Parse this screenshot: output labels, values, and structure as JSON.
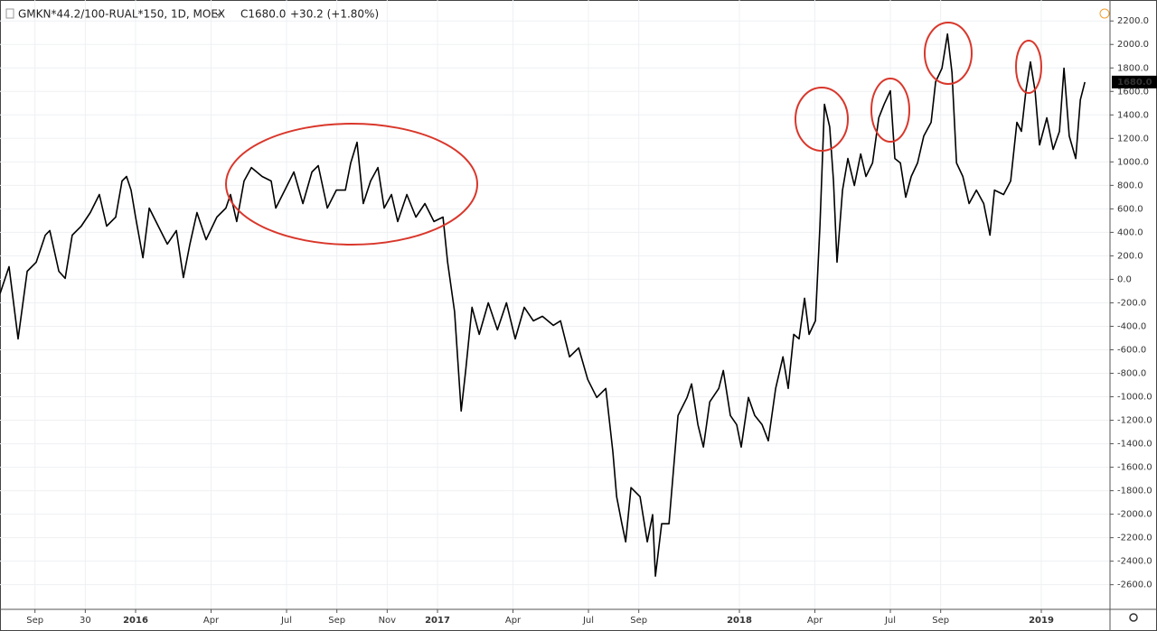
{
  "chart_data": {
    "type": "line",
    "title": "GMKN*44.2/100-RUAL*150, 1D, MOEX",
    "close_label": "C1680.0",
    "change_label": "+30.2 (+1.80%)",
    "last_price_label": "1680.0",
    "grid": true,
    "xlim": [
      -5.39,
      38.73
    ],
    "ylim": [
      -2810,
      2340
    ],
    "xticks": [
      {
        "value": -4,
        "label": "Sep"
      },
      {
        "value": -2,
        "label": "30"
      },
      {
        "value": 0,
        "label": "2016"
      },
      {
        "value": 3,
        "label": "Apr"
      },
      {
        "value": 6,
        "label": "Jul"
      },
      {
        "value": 8,
        "label": "Sep"
      },
      {
        "value": 10,
        "label": "Nov"
      },
      {
        "value": 12,
        "label": "2017"
      },
      {
        "value": 15,
        "label": "Apr"
      },
      {
        "value": 18,
        "label": "Jul"
      },
      {
        "value": 20,
        "label": "Sep"
      },
      {
        "value": 24,
        "label": "2018"
      },
      {
        "value": 27,
        "label": "Apr"
      },
      {
        "value": 30,
        "label": "Jul"
      },
      {
        "value": 32,
        "label": "Sep"
      },
      {
        "value": 36,
        "label": "2019"
      }
    ],
    "yticks": [
      {
        "value": 2200,
        "label": "2200.0"
      },
      {
        "value": 2000,
        "label": "2000.0"
      },
      {
        "value": 1800,
        "label": "1800.0"
      },
      {
        "value": 1600,
        "label": "1600.0"
      },
      {
        "value": 1400,
        "label": "1400.0"
      },
      {
        "value": 1200,
        "label": "1200.0"
      },
      {
        "value": 1000,
        "label": "1000.0"
      },
      {
        "value": 800,
        "label": "800.0"
      },
      {
        "value": 600,
        "label": "600.0"
      },
      {
        "value": 400,
        "label": "400.0"
      },
      {
        "value": 200,
        "label": "200.0"
      },
      {
        "value": 0,
        "label": "0.0"
      },
      {
        "value": -200,
        "label": "-200.0"
      },
      {
        "value": -400,
        "label": "-400.0"
      },
      {
        "value": -600,
        "label": "-600.0"
      },
      {
        "value": -800,
        "label": "-800.0"
      },
      {
        "value": -1000,
        "label": "-1000.0"
      },
      {
        "value": -1200,
        "label": "-1200.0"
      },
      {
        "value": -1400,
        "label": "-1400.0"
      },
      {
        "value": -1600,
        "label": "-1600.0"
      },
      {
        "value": -1800,
        "label": "-1800.0"
      },
      {
        "value": -2000,
        "label": "-2000.0"
      },
      {
        "value": -2200,
        "label": "-2200.0"
      },
      {
        "value": -2400,
        "label": "-2400.0"
      },
      {
        "value": -2600,
        "label": "-2600.0"
      }
    ],
    "x": [
      -5.39,
      -5.03,
      -4.67,
      -4.31,
      -3.95,
      -3.59,
      -3.41,
      -3.05,
      -2.8,
      -2.52,
      -2.16,
      -1.8,
      -1.44,
      -1.15,
      -0.79,
      -0.54,
      -0.36,
      -0.18,
      0,
      0.29,
      0.54,
      0.9,
      1.26,
      1.62,
      1.9,
      2.16,
      2.44,
      2.8,
      3.23,
      3.59,
      3.77,
      4.02,
      4.31,
      4.6,
      5.03,
      5.39,
      5.57,
      5.93,
      6.29,
      6.65,
      7.01,
      7.26,
      7.62,
      7.98,
      8.34,
      8.55,
      8.8,
      9.05,
      9.34,
      9.63,
      9.88,
      10.17,
      10.42,
      10.78,
      11.14,
      11.5,
      11.86,
      12.22,
      12.4,
      12.68,
      12.94,
      13.12,
      13.37,
      13.66,
      14.02,
      14.38,
      14.74,
      15.09,
      15.45,
      15.81,
      16.17,
      16.6,
      16.89,
      17.25,
      17.61,
      17.97,
      18.33,
      18.69,
      18.97,
      19.12,
      19.33,
      19.48,
      19.69,
      20.05,
      20.34,
      20.55,
      20.66,
      20.91,
      21.2,
      21.38,
      21.56,
      21.92,
      22.1,
      22.35,
      22.57,
      22.82,
      23.18,
      23.36,
      23.64,
      23.89,
      24.07,
      24.36,
      24.61,
      24.9,
      25.15,
      25.44,
      25.73,
      25.94,
      26.16,
      26.37,
      26.59,
      26.77,
      27.02,
      27.2,
      27.38,
      27.59,
      27.74,
      27.88,
      28.1,
      28.31,
      28.57,
      28.82,
      29.03,
      29.29,
      29.54,
      29.75,
      30.0,
      30.18,
      30.4,
      30.61,
      30.83,
      31.08,
      31.33,
      31.62,
      31.8,
      32.05,
      32.27,
      32.45,
      32.63,
      32.88,
      33.13,
      33.42,
      33.71,
      33.96,
      34.14,
      34.5,
      34.78,
      35.03,
      35.21,
      35.39,
      35.57,
      35.75,
      35.93,
      36.22,
      36.47,
      36.72,
      36.9,
      37.11,
      37.37,
      37.55,
      37.73
    ],
    "series": [
      {
        "name": "GMKN*44.2/100-RUAL*150",
        "color": "#000000",
        "values": [
          -123,
          108,
          -507,
          69,
          146,
          376,
          415,
          69,
          8,
          376,
          453,
          568,
          722,
          453,
          530,
          837,
          876,
          760,
          530,
          184,
          607,
          453,
          300,
          415,
          15,
          300,
          568,
          338,
          530,
          607,
          722,
          492,
          837,
          952,
          876,
          837,
          607,
          760,
          914,
          645,
          914,
          968,
          607,
          760,
          760,
          991,
          1167,
          645,
          837,
          952,
          607,
          722,
          492,
          722,
          530,
          645,
          492,
          530,
          146,
          -276,
          -1121,
          -776,
          -238,
          -469,
          -200,
          -430,
          -200,
          -507,
          -238,
          -353,
          -315,
          -392,
          -353,
          -660,
          -584,
          -852,
          -1006,
          -929,
          -1467,
          -1851,
          -2081,
          -2235,
          -1774,
          -1851,
          -2235,
          -2004,
          -2527,
          -2081,
          -2081,
          -1620,
          -1160,
          -1006,
          -891,
          -1237,
          -1428,
          -1044,
          -929,
          -776,
          -1160,
          -1237,
          -1428,
          -1006,
          -1160,
          -1237,
          -1375,
          -929,
          -660,
          -929,
          -469,
          -507,
          -161,
          -469,
          -353,
          453,
          1490,
          1298,
          837,
          146,
          760,
          1029,
          799,
          1068,
          876,
          991,
          1375,
          1490,
          1605,
          1029,
          991,
          699,
          876,
          991,
          1221,
          1337,
          1682,
          1797,
          2089,
          1759,
          991,
          876,
          645,
          760,
          645,
          376,
          760,
          722,
          837,
          1337,
          1260,
          1605,
          1851,
          1605,
          1144,
          1375,
          1106,
          1260,
          1797,
          1221,
          1029,
          1528,
          1680
        ]
      }
    ]
  }
}
